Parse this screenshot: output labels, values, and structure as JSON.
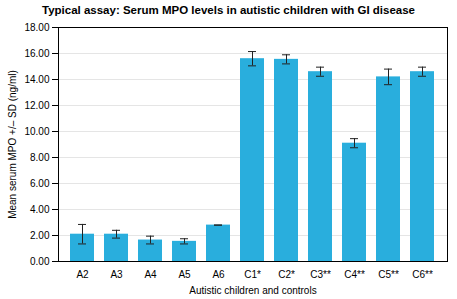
{
  "chart_data": {
    "type": "bar",
    "title": "Typical assay: Serum MPO levels in autistic children with GI disease",
    "xlabel": "Autistic children and controls",
    "ylabel": "Mean serum MPO +/– SD (ng/ml)",
    "categories": [
      "A2",
      "A3",
      "A4",
      "A5",
      "A6",
      "C1*",
      "C2*",
      "C3**",
      "C4**",
      "C5**",
      "C6**"
    ],
    "values": [
      2.1,
      2.1,
      1.65,
      1.55,
      2.8,
      15.6,
      15.55,
      14.6,
      9.1,
      14.2,
      14.6
    ],
    "errors": [
      0.75,
      0.3,
      0.3,
      0.2,
      0.0,
      0.55,
      0.35,
      0.35,
      0.35,
      0.6,
      0.35
    ],
    "color": "#29AEDD",
    "ylim": [
      0.0,
      18.0
    ],
    "yticks": [
      {
        "value": 0,
        "label": "0.00"
      },
      {
        "value": 2,
        "label": "2.00"
      },
      {
        "value": 4,
        "label": "4.00"
      },
      {
        "value": 6,
        "label": "6.00"
      },
      {
        "value": 8,
        "label": "8.00"
      },
      {
        "value": 10,
        "label": "10.00"
      },
      {
        "value": 12,
        "label": "12.00"
      },
      {
        "value": 14,
        "label": "14.00"
      },
      {
        "value": 16,
        "label": "16.00"
      },
      {
        "value": 18,
        "label": "18.00"
      }
    ],
    "grid": true
  }
}
